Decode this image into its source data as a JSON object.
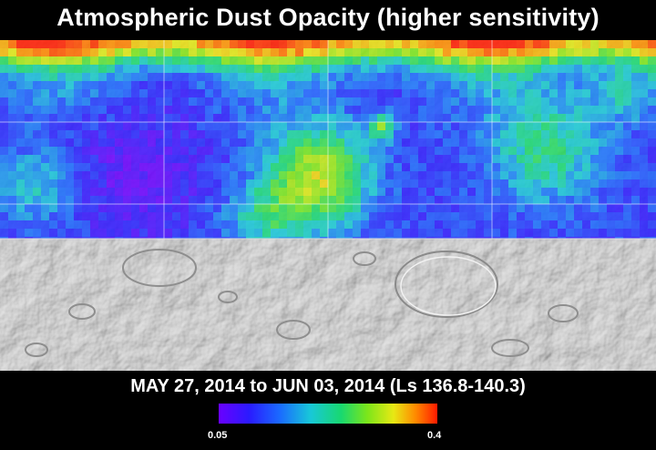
{
  "header": {
    "title": "Atmospheric Dust Opacity (higher sensitivity)"
  },
  "footer": {
    "date_range": "MAY 27, 2014 to JUN 03, 2014 (Ls 136.8-140.3)"
  },
  "legend": {
    "min_label": "0.05",
    "max_label": "0.4",
    "min_value": 0.05,
    "max_value": 0.4,
    "colors": [
      "#6a00ff",
      "#2a1bff",
      "#1a6bff",
      "#18c8d8",
      "#18d870",
      "#7ce61a",
      "#e8e814",
      "#ff8a00",
      "#ff1a00"
    ]
  },
  "map": {
    "coverage_fraction": 0.6,
    "background_color": "#bdbdbd",
    "grid_color": "#ffffff"
  }
}
